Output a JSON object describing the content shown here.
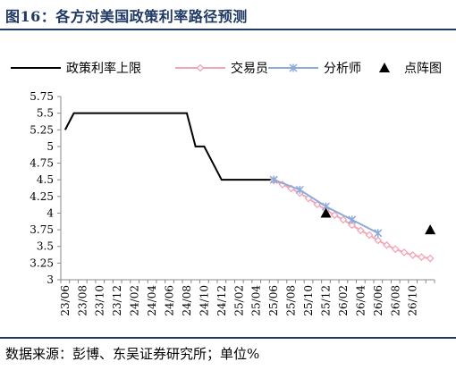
{
  "header": {
    "title": "图16：各方对美国政策利率路径预测"
  },
  "footer": {
    "source": "数据来源：彭博、东吴证券研究所；单位%"
  },
  "colors": {
    "policy": "#000000",
    "traders": "#f4a6b4",
    "analysts": "#8eaadb",
    "dotplot": "#000000",
    "accent": "#1f3864"
  },
  "chart_data": {
    "type": "line",
    "legend_position": "top",
    "grid": false,
    "ylim": [
      3,
      5.75
    ],
    "yticks": [
      3,
      3.25,
      3.5,
      3.75,
      4,
      4.25,
      4.5,
      4.75,
      5,
      5.25,
      5.5,
      5.75
    ],
    "ytick_labels": [
      "3",
      "3.25",
      "3.5",
      "3.75",
      "4",
      "4.25",
      "4.5",
      "4.75",
      "5",
      "5.25",
      "5.5",
      "5.75"
    ],
    "x_tick_labels": [
      "23/06",
      "23/08",
      "23/10",
      "23/12",
      "24/02",
      "24/04",
      "24/06",
      "24/08",
      "24/10",
      "24/12",
      "25/02",
      "25/04",
      "25/06",
      "25/08",
      "25/10",
      "25/12",
      "26/02",
      "26/04",
      "26/06",
      "26/08",
      "26/10"
    ],
    "series": [
      {
        "name": "政策利率上限",
        "key": "policy",
        "style": "line",
        "points": [
          [
            "2023-06",
            5.25
          ],
          [
            "2023-07",
            5.5
          ],
          [
            "2023-08",
            5.5
          ],
          [
            "2023-09",
            5.5
          ],
          [
            "2023-10",
            5.5
          ],
          [
            "2023-11",
            5.5
          ],
          [
            "2023-12",
            5.5
          ],
          [
            "2024-01",
            5.5
          ],
          [
            "2024-02",
            5.5
          ],
          [
            "2024-03",
            5.5
          ],
          [
            "2024-04",
            5.5
          ],
          [
            "2024-05",
            5.5
          ],
          [
            "2024-06",
            5.5
          ],
          [
            "2024-07",
            5.5
          ],
          [
            "2024-08",
            5.5
          ],
          [
            "2024-09",
            5.0
          ],
          [
            "2024-10",
            5.0
          ],
          [
            "2024-11",
            4.75
          ],
          [
            "2024-12",
            4.5
          ],
          [
            "2025-01",
            4.5
          ],
          [
            "2025-02",
            4.5
          ],
          [
            "2025-03",
            4.5
          ],
          [
            "2025-04",
            4.5
          ],
          [
            "2025-05",
            4.5
          ],
          [
            "2025-06",
            4.5
          ]
        ]
      },
      {
        "name": "交易员",
        "key": "traders",
        "style": "diamond-line",
        "points": [
          [
            "2025-06",
            4.49
          ],
          [
            "2025-07",
            4.43
          ],
          [
            "2025-08",
            4.37
          ],
          [
            "2025-09",
            4.3
          ],
          [
            "2025-10",
            4.22
          ],
          [
            "2025-11",
            4.13
          ],
          [
            "2025-12",
            4.05
          ],
          [
            "2026-01",
            3.97
          ],
          [
            "2026-02",
            3.9
          ],
          [
            "2026-03",
            3.82
          ],
          [
            "2026-04",
            3.74
          ],
          [
            "2026-05",
            3.67
          ],
          [
            "2026-06",
            3.59
          ],
          [
            "2026-07",
            3.52
          ],
          [
            "2026-08",
            3.46
          ],
          [
            "2026-09",
            3.41
          ],
          [
            "2026-10",
            3.37
          ],
          [
            "2026-11",
            3.34
          ],
          [
            "2026-12",
            3.32
          ]
        ]
      },
      {
        "name": "分析师",
        "key": "analysts",
        "style": "star-line",
        "points": [
          [
            "2025-06",
            4.5
          ],
          [
            "2025-09",
            4.35
          ],
          [
            "2025-12",
            4.1
          ],
          [
            "2026-03",
            3.9
          ],
          [
            "2026-06",
            3.7
          ]
        ]
      },
      {
        "name": "点阵图",
        "key": "dotplot",
        "style": "triangle",
        "points": [
          [
            "2025-12",
            4.0
          ],
          [
            "2026-12",
            3.75
          ]
        ]
      }
    ]
  }
}
